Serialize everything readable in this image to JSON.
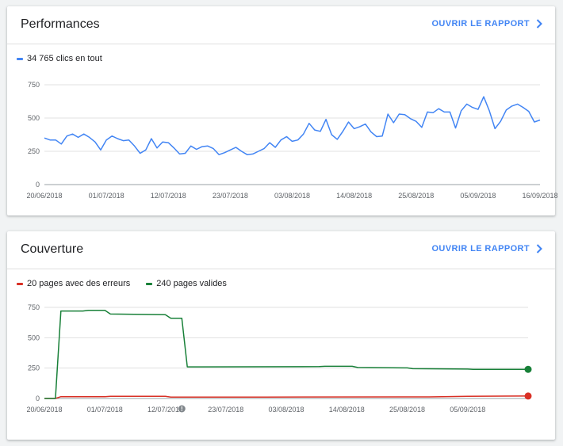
{
  "performance": {
    "title": "Performances",
    "report_label": "OUVRIR LE RAPPORT",
    "legend": [
      {
        "label": "34 765 clics en tout",
        "color": "#4285f4"
      }
    ],
    "chart_data": {
      "type": "line",
      "y_ticks": [
        "0",
        "250",
        "500",
        "750"
      ],
      "ylim": [
        0,
        750
      ],
      "x_tick_labels": [
        "20/06/2018",
        "01/07/2018",
        "12/07/2018",
        "23/07/2018",
        "03/08/2018",
        "14/08/2018",
        "25/08/2018",
        "05/09/2018",
        "16/09/2018"
      ],
      "x_range_days": [
        0,
        88
      ],
      "x_tick_days": [
        0,
        11,
        22,
        33,
        44,
        55,
        66,
        77,
        88
      ],
      "grid": true,
      "series": [
        {
          "name": "34 765 clics en tout",
          "color": "#4285f4",
          "values": [
            350,
            335,
            335,
            305,
            365,
            380,
            355,
            380,
            355,
            320,
            260,
            335,
            365,
            345,
            330,
            335,
            290,
            235,
            260,
            345,
            275,
            320,
            315,
            275,
            230,
            235,
            290,
            265,
            285,
            290,
            270,
            225,
            240,
            260,
            280,
            250,
            225,
            230,
            250,
            270,
            315,
            280,
            335,
            360,
            325,
            335,
            380,
            460,
            410,
            400,
            490,
            375,
            340,
            400,
            470,
            420,
            435,
            455,
            395,
            360,
            365,
            530,
            465,
            530,
            525,
            495,
            475,
            430,
            545,
            540,
            570,
            545,
            545,
            425,
            555,
            605,
            580,
            565,
            660,
            555,
            420,
            475,
            560,
            590,
            605,
            580,
            550,
            470,
            485
          ]
        }
      ]
    }
  },
  "coverage": {
    "title": "Couverture",
    "report_label": "OUVRIR LE RAPPORT",
    "legend": [
      {
        "label": "20 pages avec des erreurs",
        "color": "#d93025"
      },
      {
        "label": "240 pages valides",
        "color": "#188038"
      }
    ],
    "chart_data": {
      "type": "line",
      "y_ticks": [
        "0",
        "250",
        "500",
        "750"
      ],
      "ylim": [
        0,
        750
      ],
      "x_tick_labels": [
        "20/06/2018",
        "01/07/2018",
        "12/07/2018",
        "23/07/2018",
        "03/08/2018",
        "14/08/2018",
        "25/08/2018",
        "05/09/2018"
      ],
      "x_range_days": [
        0,
        88
      ],
      "x_tick_days": [
        0,
        11,
        22,
        33,
        44,
        55,
        66,
        77
      ],
      "grid": true,
      "annotation": {
        "day": 25,
        "label": "!"
      },
      "series": [
        {
          "name": "20 pages avec des erreurs",
          "color": "#d93025",
          "points": [
            [
              0,
              0
            ],
            [
              2,
              0
            ],
            [
              3,
              15
            ],
            [
              11,
              15
            ],
            [
              12,
              18
            ],
            [
              22,
              18
            ],
            [
              23,
              12
            ],
            [
              40,
              12
            ],
            [
              70,
              13
            ],
            [
              77,
              18
            ],
            [
              88,
              20
            ]
          ]
        },
        {
          "name": "240 pages valides",
          "color": "#188038",
          "points": [
            [
              0,
              0
            ],
            [
              2,
              0
            ],
            [
              3,
              720
            ],
            [
              7,
              720
            ],
            [
              8,
              725
            ],
            [
              11,
              725
            ],
            [
              12,
              695
            ],
            [
              22,
              690
            ],
            [
              23,
              660
            ],
            [
              25,
              660
            ],
            [
              26,
              260
            ],
            [
              50,
              262
            ],
            [
              51,
              265
            ],
            [
              56,
              265
            ],
            [
              57,
              255
            ],
            [
              66,
              252
            ],
            [
              67,
              245
            ],
            [
              77,
              242
            ],
            [
              78,
              240
            ],
            [
              88,
              240
            ]
          ]
        }
      ]
    }
  }
}
